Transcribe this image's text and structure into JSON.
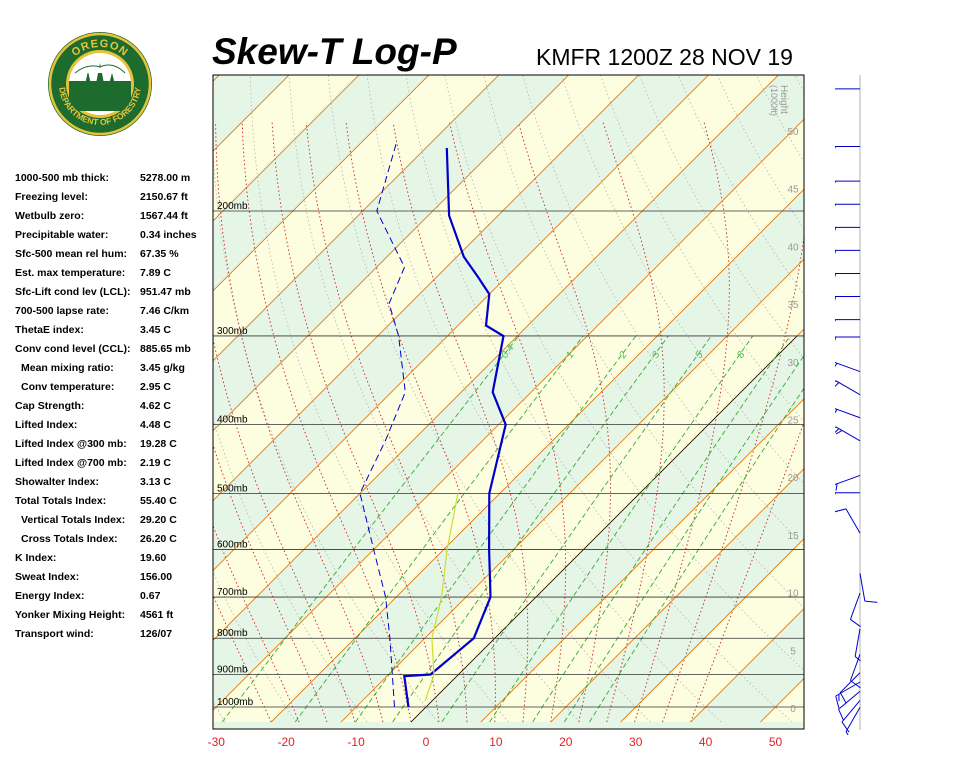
{
  "header": {
    "title": "Skew-T Log-P",
    "station": "KMFR 1200Z 28 NOV 19"
  },
  "logo": {
    "top_text": "OREGON",
    "bottom_text": "DEPARTMENT OF FORESTRY",
    "colors": {
      "green": "#1e6b2e",
      "gold": "#e8c33a"
    }
  },
  "indices": [
    {
      "label": "1000-500 mb thick:",
      "value": "5278.00 m"
    },
    {
      "label": "Freezing level:",
      "value": "2150.67 ft"
    },
    {
      "label": "Wetbulb zero:",
      "value": "1567.44 ft"
    },
    {
      "label": "Precipitable water:",
      "value": "0.34 inches"
    },
    {
      "label": "Sfc-500 mean rel hum:",
      "value": "67.35 %"
    },
    {
      "label": "Est. max temperature:",
      "value": "7.89 C"
    },
    {
      "label": "Sfc-Lift cond lev (LCL):",
      "value": "951.47 mb"
    },
    {
      "label": "700-500 lapse rate:",
      "value": "7.46 C/km"
    },
    {
      "label": "ThetaE index:",
      "value": "3.45 C"
    },
    {
      "label": "Conv cond level (CCL):",
      "value": "885.65 mb"
    },
    {
      "label": "Mean mixing ratio:",
      "value": "3.45 g/kg",
      "indent": true
    },
    {
      "label": "Conv temperature:",
      "value": "2.95 C",
      "indent": true
    },
    {
      "label": "Cap Strength:",
      "value": "4.62 C"
    },
    {
      "label": "Lifted Index:",
      "value": "4.48 C"
    },
    {
      "label": "Lifted Index @300 mb:",
      "value": "19.28 C"
    },
    {
      "label": "Lifted Index @700 mb:",
      "value": "2.19 C"
    },
    {
      "label": "Showalter Index:",
      "value": "3.13 C"
    },
    {
      "label": "Total Totals Index:",
      "value": "55.40 C"
    },
    {
      "label": "Vertical Totals Index:",
      "value": "29.20 C",
      "indent": true
    },
    {
      "label": "Cross Totals Index:",
      "value": "26.20 C",
      "indent": true
    },
    {
      "label": "K Index:",
      "value": "19.60"
    },
    {
      "label": "Sweat Index:",
      "value": "156.00"
    },
    {
      "label": "Energy Index:",
      "value": "0.67"
    },
    {
      "label": "Yonker Mixing Height:",
      "value": "4561 ft"
    },
    {
      "label": "Transport wind:",
      "value": "126/07"
    }
  ],
  "chart_data": {
    "type": "line",
    "xlabel": "",
    "ylabel": "",
    "xlim": [
      -30,
      50
    ],
    "x_ticks": [
      "-30",
      "-20",
      "-10",
      "0",
      "10",
      "20",
      "30",
      "40",
      "50"
    ],
    "pressure_levels": [
      {
        "p": 200,
        "label": "200mb"
      },
      {
        "p": 300,
        "label": "300mb"
      },
      {
        "p": 400,
        "label": "400mb"
      },
      {
        "p": 500,
        "label": "500mb"
      },
      {
        "p": 600,
        "label": "600mb"
      },
      {
        "p": 700,
        "label": "700mb"
      },
      {
        "p": 800,
        "label": "800mb"
      },
      {
        "p": 900,
        "label": "900mb"
      },
      {
        "p": 1000,
        "label": "1000mb"
      }
    ],
    "height_axis": {
      "label": "Height",
      "unit": "(1000ft)",
      "ticks": [
        "0",
        "5",
        "10",
        "15",
        "20",
        "25",
        "30",
        "35",
        "40",
        "45",
        "50"
      ]
    },
    "mixing_ratio_labels": [
      "0.4",
      "1",
      "2",
      "3",
      "5",
      "8"
    ],
    "series": [
      {
        "role": "temperature",
        "color": "#0000cc",
        "points": [
          [
            -2.5,
            1000
          ],
          [
            -7.5,
            905
          ],
          [
            -4,
            900
          ],
          [
            -3,
            800
          ],
          [
            -6.5,
            700
          ],
          [
            -13.5,
            600
          ],
          [
            -21.5,
            500
          ],
          [
            -29,
            400
          ],
          [
            -35.5,
            360
          ],
          [
            -42,
            300
          ],
          [
            -46,
            290
          ],
          [
            -50,
            262
          ],
          [
            -54,
            248
          ],
          [
            -59,
            232
          ],
          [
            -67,
            203
          ],
          [
            -77,
            163
          ]
        ]
      },
      {
        "role": "dewpoint",
        "color": "#0000cc",
        "points": [
          [
            -4.5,
            1000
          ],
          [
            -15,
            800
          ],
          [
            -21.5,
            700
          ],
          [
            -30,
            600
          ],
          [
            -40,
            500
          ],
          [
            -44,
            420
          ],
          [
            -48,
            360
          ],
          [
            -57,
            300
          ],
          [
            -63,
            270
          ],
          [
            -66,
            240
          ],
          [
            -78,
            200
          ],
          [
            -85,
            160
          ]
        ]
      },
      {
        "role": "parcel",
        "color": "#ccdd33",
        "points": [
          [
            -1,
            980
          ],
          [
            -3.5,
            900
          ],
          [
            -9,
            800
          ],
          [
            -13.5,
            700
          ],
          [
            -19.5,
            600
          ],
          [
            -26,
            500
          ]
        ]
      }
    ],
    "wind_barbs": [
      {
        "height_kft": 0.4,
        "direction": 210,
        "speed": 5
      },
      {
        "height_kft": 1.0,
        "direction": 220,
        "speed": 10
      },
      {
        "height_kft": 1.8,
        "direction": 230,
        "speed": 10
      },
      {
        "height_kft": 2.6,
        "direction": 240,
        "speed": 15
      },
      {
        "height_kft": 3.4,
        "direction": 225,
        "speed": 10
      },
      {
        "height_kft": 5.0,
        "direction": 200,
        "speed": 10
      },
      {
        "height_kft": 7.2,
        "direction": 190,
        "speed": 5
      },
      {
        "height_kft": 10.3,
        "direction": 200,
        "speed": 10
      },
      {
        "height_kft": 12.0,
        "direction": 170,
        "speed": 10
      },
      {
        "height_kft": 15.5,
        "direction": 330,
        "speed": 10
      },
      {
        "height_kft": 19.0,
        "direction": 270,
        "speed": 15
      },
      {
        "height_kft": 20.5,
        "direction": 250,
        "speed": 15
      },
      {
        "height_kft": 23.5,
        "direction": 300,
        "speed": 25
      },
      {
        "height_kft": 25.5,
        "direction": 290,
        "speed": 20
      },
      {
        "height_kft": 27.5,
        "direction": 300,
        "speed": 20
      },
      {
        "height_kft": 29.5,
        "direction": 290,
        "speed": 20
      },
      {
        "height_kft": 32.5,
        "direction": 270,
        "speed": 20
      },
      {
        "height_kft": 34.0,
        "direction": 270,
        "speed": 15
      },
      {
        "height_kft": 36.0,
        "direction": 270,
        "speed": 20
      },
      {
        "height_kft": 38.0,
        "direction": 270,
        "speed": 20
      },
      {
        "height_kft": 40.0,
        "direction": 270,
        "speed": 20
      },
      {
        "height_kft": 42.0,
        "direction": 270,
        "speed": 20
      },
      {
        "height_kft": 44.0,
        "direction": 270,
        "speed": 15
      },
      {
        "height_kft": 46.0,
        "direction": 270,
        "speed": 15
      },
      {
        "height_kft": 49.0,
        "direction": 270,
        "speed": 15
      },
      {
        "height_kft": 54.0,
        "direction": 270,
        "speed": 10
      }
    ],
    "colors": {
      "isotherm": "#e07a10",
      "dry_adiabat": "#b4b4b4",
      "moist_adiabat": "#cc2222",
      "mixing_ratio": "#33aa33",
      "isobar": "#333333",
      "band_green": "#e6f6e6",
      "band_yellow": "#fdfde0",
      "axis_label": "#dd2222"
    }
  }
}
